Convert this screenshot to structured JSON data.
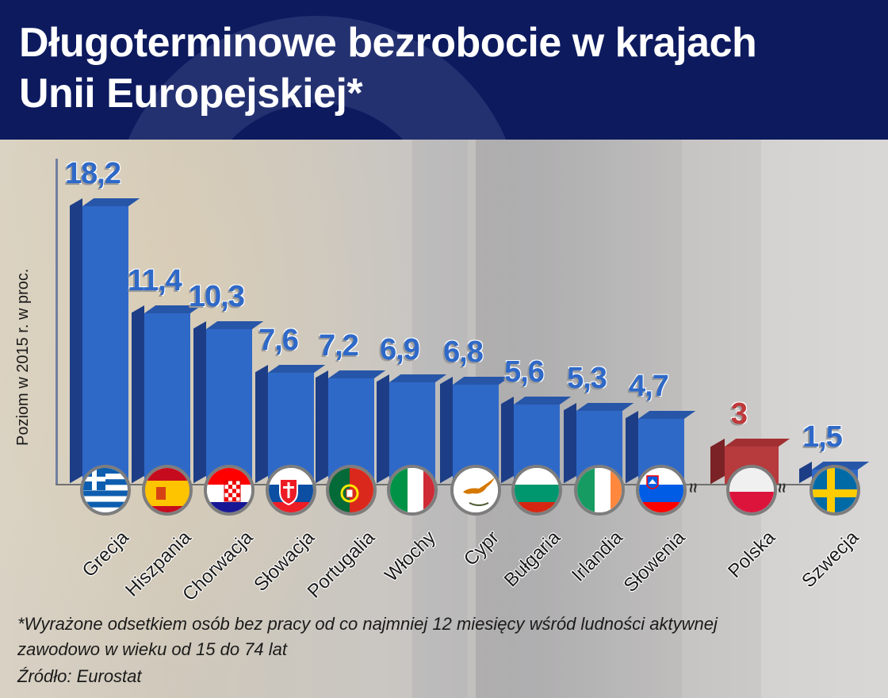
{
  "header": {
    "title_line1": "Długoterminowe bezrobocie w krajach",
    "title_line2": "Unii Europejskiej*"
  },
  "axis": {
    "ylabel": "Poziom w 2015 r. w proc."
  },
  "footnote": {
    "line1": "*Wyrażone odsetkiem osób bez pracy od co najmniej 12 miesięcy wśród ludności aktywnej",
    "line2": "zawodowo w wieku od 15 do 74 lat",
    "source": "Źródło: Eurostat"
  },
  "colors": {
    "bar": "#2f69c8",
    "bar_side": "#1d3e86",
    "highlight": "#c0393b",
    "header_bg": "#0d1a5e"
  },
  "bars": [
    {
      "country": "Grecja",
      "label": "18,2",
      "value": 18.2
    },
    {
      "country": "Hiszpania",
      "label": "11,4",
      "value": 11.4
    },
    {
      "country": "Chorwacja",
      "label": "10,3",
      "value": 10.3
    },
    {
      "country": "Słowacja",
      "label": "7,6",
      "value": 7.6
    },
    {
      "country": "Portugalia",
      "label": "7,2",
      "value": 7.2
    },
    {
      "country": "Włochy",
      "label": "6,9",
      "value": 6.9
    },
    {
      "country": "Cypr",
      "label": "6,8",
      "value": 6.8
    },
    {
      "country": "Bułgaria",
      "label": "5,6",
      "value": 5.6
    },
    {
      "country": "Irlandia",
      "label": "5,3",
      "value": 5.3
    },
    {
      "country": "Słowenia",
      "label": "4,7",
      "value": 4.7
    },
    {
      "country": "Polska",
      "label": "3",
      "value": 3
    },
    {
      "country": "Szwecja",
      "label": "1,5",
      "value": 1.5
    }
  ],
  "chart_data": {
    "type": "bar",
    "title": "Długoterminowe bezrobocie w krajach Unii Europejskiej*",
    "xlabel": "",
    "ylabel": "Poziom w 2015 r. w proc.",
    "categories": [
      "Grecja",
      "Hiszpania",
      "Chorwacja",
      "Słowacja",
      "Portugalia",
      "Włochy",
      "Cypr",
      "Bułgaria",
      "Irlandia",
      "Słowenia",
      "Polska",
      "Szwecja"
    ],
    "values": [
      18.2,
      11.4,
      10.3,
      7.6,
      7.2,
      6.9,
      6.8,
      5.6,
      5.3,
      4.7,
      3,
      1.5
    ],
    "highlight": "Polska",
    "axis_breaks": [
      "between Słowenia and Polska",
      "between Polska and Szwecja"
    ],
    "grid": false,
    "legend": null,
    "annotations": [
      "*Wyrażone odsetkiem osób bez pracy od co najmniej 12 miesięcy wśród ludności aktywnej zawodowo w wieku od 15 do 74 lat",
      "Źródło: Eurostat"
    ]
  }
}
